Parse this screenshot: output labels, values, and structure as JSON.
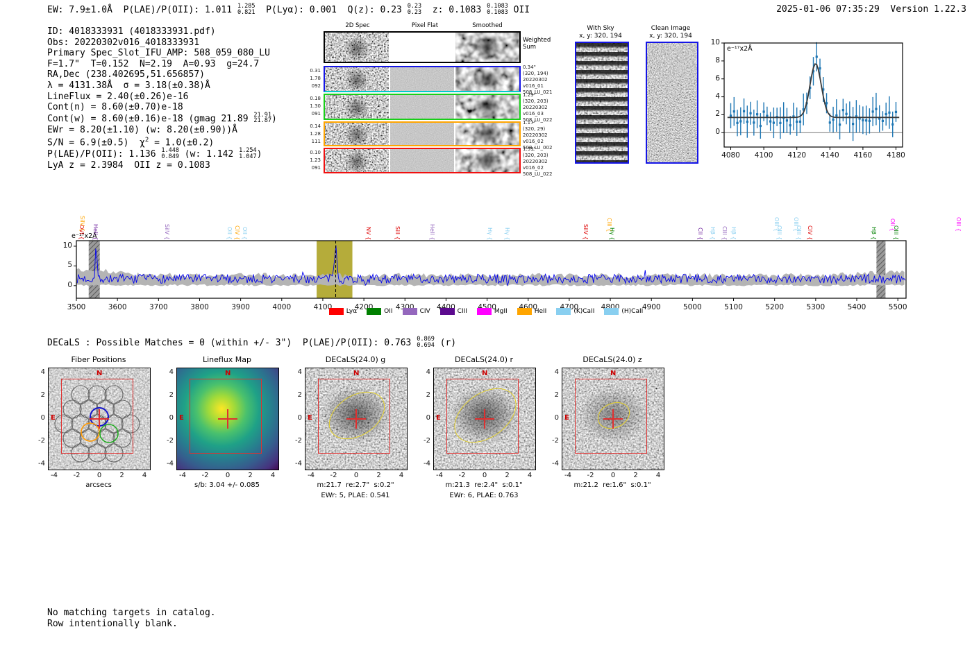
{
  "header": {
    "left_segments": [
      {
        "t": "EW: 7.9±1.0Å  P(LAE)/P(OII): 1.011 "
      },
      {
        "frac": [
          "1.285",
          "0.821"
        ]
      },
      {
        "t": "  P(Lyα): 0.001  Q(z): 0.23 "
      },
      {
        "frac": [
          "0.23",
          "0.23"
        ]
      },
      {
        "t": "  z: 0.1083 "
      },
      {
        "frac": [
          "0.1083",
          "0.1083"
        ]
      },
      {
        "t": " OII"
      }
    ],
    "timestamp": "2025-01-06 07:35:29  Version 1.22.3"
  },
  "info_lines": [
    [
      {
        "t": "ID: 4018333931 (4018333931.pdf)"
      }
    ],
    [
      {
        "t": "Obs: 20220302v016_4018333931"
      }
    ],
    [
      {
        "t": "Primary Spec_Slot_IFU_AMP: 508_059_080_LU"
      }
    ],
    [
      {
        "t": "F=1.7\"  T=0.152  N=2.19  A=0.93  g=24.7"
      }
    ],
    [
      {
        "t": "RA,Dec (238.402695,51.656857)"
      }
    ],
    [
      {
        "t": "λ = 4131.38Å  σ = 3.18(±0.38)Å"
      }
    ],
    [
      {
        "t": "LineFlux = 2.40(±0.26)e-16"
      }
    ],
    [
      {
        "t": "Cont(n) = 8.60(±0.70)e-18"
      }
    ],
    [
      {
        "t": "Cont(w) = 8.60(±0.16)e-18 (gmag 21.89 "
      },
      {
        "frac": [
          "21.91",
          "21.87"
        ]
      },
      {
        "t": ")"
      }
    ],
    [
      {
        "t": "EWr = 8.20(±1.10) (w: 8.20(±0.90))Å"
      }
    ],
    [
      {
        "t": "S/N = 6.9(±0.5)  χ"
      },
      {
        "sup": "2"
      },
      {
        "t": " = 1.0(±0.2)"
      }
    ],
    [
      {
        "t": "P(LAE)/P(OII): 1.136 "
      },
      {
        "frac": [
          "1.448",
          "0.849"
        ]
      },
      {
        "t": " (w: 1.142 "
      },
      {
        "frac": [
          "1.254",
          "1.047"
        ]
      },
      {
        "t": ")"
      }
    ],
    [
      {
        "t": "LyA z = 2.3984  OII z = 0.1083"
      }
    ]
  ],
  "cutouts_2d": {
    "col_headers": [
      "2D Spec",
      "Pixel Flat",
      "Smoothed"
    ],
    "weighted_sum": [
      "Weighted",
      "Sum"
    ],
    "rows": [
      {
        "border": "#000000",
        "left": [],
        "right": []
      },
      {
        "border": "#1414e6",
        "left": [
          "0.31",
          "1.78",
          "092"
        ],
        "right": [
          "0.34\"",
          "(320, 194)",
          "20220302",
          "v016_01",
          "508_LU_021"
        ]
      },
      {
        "border": "#18cf18",
        "left": [
          "0.18",
          "1.30",
          "091"
        ],
        "right": [
          "1.29\"",
          "(320, 203)",
          "20220302",
          "v016_03",
          "508_LU_022"
        ]
      },
      {
        "border": "#ffa500",
        "left": [
          "0.14",
          "1.28",
          "111"
        ],
        "right": [
          "1.17\"",
          "(320, 29)",
          "20220302",
          "v016_02",
          "508_LU_002"
        ]
      },
      {
        "border": "#f01010",
        "left": [
          "0.10",
          "1.23",
          "091"
        ],
        "right": [
          "1.59\"",
          "(320, 203)",
          "20220302",
          "v016_02",
          "508_LU_022"
        ]
      }
    ]
  },
  "sky_panels": [
    {
      "title": "With Sky",
      "subtitle": "x, y: 320, 194"
    },
    {
      "title": "Clean Image",
      "subtitle": "x, y: 320, 194"
    }
  ],
  "decals_segments": [
    {
      "t": "DECaLS : Possible Matches = 0 (within +/- 3\")  P(LAE)/P(OII): 0.763 "
    },
    {
      "frac": [
        "0.869",
        "0.694"
      ]
    },
    {
      "t": " (r)"
    }
  ],
  "footer_lines": [
    "No matching targets in catalog.",
    "Row intentionally blank."
  ],
  "chart_data": [
    {
      "type": "errorbar+line",
      "title": "line-fit-zoom",
      "unit_label": "e⁻¹⁷x2Å",
      "xlim": [
        4076,
        4184
      ],
      "xticks": [
        4080,
        4100,
        4120,
        4140,
        4160,
        4180
      ],
      "ylim": [
        -1.6,
        10
      ],
      "yticks": [
        0,
        2,
        4,
        6,
        8,
        10
      ],
      "continuum": 1.7,
      "gaussian": {
        "center": 4131.38,
        "sigma": 3.18,
        "peak": 7.7
      },
      "point_color": "#1f77b4",
      "fit_color": "#3a3a3a",
      "grid": false,
      "legend_position": "none"
    },
    {
      "type": "line",
      "title": "full-spectrum",
      "ylabel": "e⁻¹⁷x2Å",
      "xlim": [
        3500,
        5520
      ],
      "xticks": [
        3500,
        3600,
        3700,
        3800,
        3900,
        4000,
        4100,
        4200,
        4300,
        4400,
        4500,
        4600,
        4700,
        4800,
        4900,
        5000,
        5100,
        5200,
        5300,
        5400,
        5500
      ],
      "ylim": [
        -3.2,
        11.4
      ],
      "yticks": [
        0,
        5,
        10
      ],
      "line_color": "#0000ee",
      "envelope_color": "#b4b4b4",
      "continuum": 1.75,
      "emission_peak": {
        "center": 4131.38,
        "sigma": 3.0,
        "peak": 8.2
      },
      "spike": {
        "center": 3548,
        "sigma": 2.0,
        "peak": 8.5
      },
      "highlight_band": [
        4085,
        4172
      ],
      "highlight_color": "rgba(168,158,24,0.85)",
      "dashed_line": 4131.38,
      "masked_bands": [
        [
          3530,
          3557
        ],
        [
          5448,
          5470
        ]
      ],
      "grid": false,
      "legend_position": "bottom",
      "legend": [
        {
          "label": "Lyα",
          "color": "#ff0000"
        },
        {
          "label": "OII",
          "color": "#008000"
        },
        {
          "label": "CIV",
          "color": "#9467bd"
        },
        {
          "label": "CIII",
          "color": "#5c0a8e"
        },
        {
          "label": "MgII",
          "color": "#ff00ff"
        },
        {
          "label": "HeII",
          "color": "#ffa500"
        },
        {
          "label": "(K)CaII",
          "color": "#89cff0"
        },
        {
          "label": "(H)CaII",
          "color": "#89cff0"
        }
      ],
      "line_labels": [
        {
          "text": "OVI",
          "wave": 3512,
          "color": "#dd0000",
          "row": "low"
        },
        {
          "text": "SiIV",
          "wave": 3514,
          "color": "#ffa500",
          "row": "up"
        },
        {
          "text": "HeII",
          "wave": 3546,
          "color": "#6a1b9a",
          "row": "low"
        },
        {
          "text": "SiIV",
          "wave": 3720,
          "color": "#9467bd",
          "row": "low"
        },
        {
          "text": "OII",
          "wave": 3872,
          "color": "#89cff0",
          "row": "low"
        },
        {
          "text": "CIV",
          "wave": 3891,
          "color": "#ffa500",
          "row": "low"
        },
        {
          "text": "OII",
          "wave": 3909,
          "color": "#89cff0",
          "row": "low"
        },
        {
          "text": "NV",
          "wave": 4210,
          "color": "#dd0000",
          "row": "low"
        },
        {
          "text": "SiII",
          "wave": 4281,
          "color": "#dd0000",
          "row": "low"
        },
        {
          "text": "HeII",
          "wave": 4366,
          "color": "#9467bd",
          "row": "low"
        },
        {
          "text": "Hγ",
          "wave": 4506,
          "color": "#89cff0",
          "row": "low"
        },
        {
          "text": "Hγ",
          "wave": 4548,
          "color": "#89cff0",
          "row": "low"
        },
        {
          "text": "SiIV",
          "wave": 4739,
          "color": "#dd0000",
          "row": "low"
        },
        {
          "text": "CIII",
          "wave": 4797,
          "color": "#ffa500",
          "row": "up"
        },
        {
          "text": "Hγ",
          "wave": 4803,
          "color": "#008000",
          "row": "low"
        },
        {
          "text": "CII",
          "wave": 5018,
          "color": "#6a1b9a",
          "row": "low"
        },
        {
          "text": "Hβ",
          "wave": 5049,
          "color": "#89cff0",
          "row": "low"
        },
        {
          "text": "CIII",
          "wave": 5077,
          "color": "#9467bd",
          "row": "low"
        },
        {
          "text": "Hβ",
          "wave": 5099,
          "color": "#89cff0",
          "row": "low"
        },
        {
          "text": "OIII",
          "wave": 5204,
          "color": "#89cff0",
          "row": "up"
        },
        {
          "text": "OIII",
          "wave": 5211,
          "color": "#89cff0",
          "row": "low"
        },
        {
          "text": "OIII",
          "wave": 5252,
          "color": "#89cff0",
          "row": "up"
        },
        {
          "text": "OIII",
          "wave": 5258,
          "color": "#89cff0",
          "row": "low"
        },
        {
          "text": "CIV",
          "wave": 5285,
          "color": "#dd0000",
          "row": "low"
        },
        {
          "text": "Hβ",
          "wave": 5441,
          "color": "#008000",
          "row": "low"
        },
        {
          "text": "OII",
          "wave": 5487,
          "color": "#ff00ff",
          "row": "up"
        },
        {
          "text": "OIII",
          "wave": 5495,
          "color": "#008000",
          "row": "low"
        },
        {
          "text": "OIII",
          "wave": 5647,
          "color": "#ff00ff",
          "row": "up"
        }
      ]
    }
  ],
  "bottom_panels": {
    "xticks": [
      "-4",
      "-2",
      "0",
      "2",
      "4"
    ],
    "yticks": [
      "4",
      "2",
      "0",
      "-2",
      "-4"
    ],
    "compass": {
      "north": "N",
      "east": "E"
    },
    "panels": [
      {
        "title": "Fiber Positions",
        "xlabel": "arcsecs",
        "captions": [],
        "kind": "fiber"
      },
      {
        "title": "Lineflux Map",
        "captions": [
          "s/b: 3.04 +/- 0.085"
        ],
        "kind": "lineflux"
      },
      {
        "title": "DECaLS(24.0) g",
        "captions": [
          "m:21.7  re:2.7\"  s:0.2\"",
          "EWr: 5, PLAE: 0.541"
        ],
        "kind": "gray"
      },
      {
        "title": "DECaLS(24.0) r",
        "captions": [
          "m:21.3  re:2.4\"  s:0.1\"",
          "EWr: 6, PLAE: 0.763"
        ],
        "kind": "gray"
      },
      {
        "title": "DECaLS(24.0) z",
        "captions": [
          "m:21.2  re:1.6\"  s:0.1\""
        ],
        "kind": "gray"
      }
    ]
  }
}
